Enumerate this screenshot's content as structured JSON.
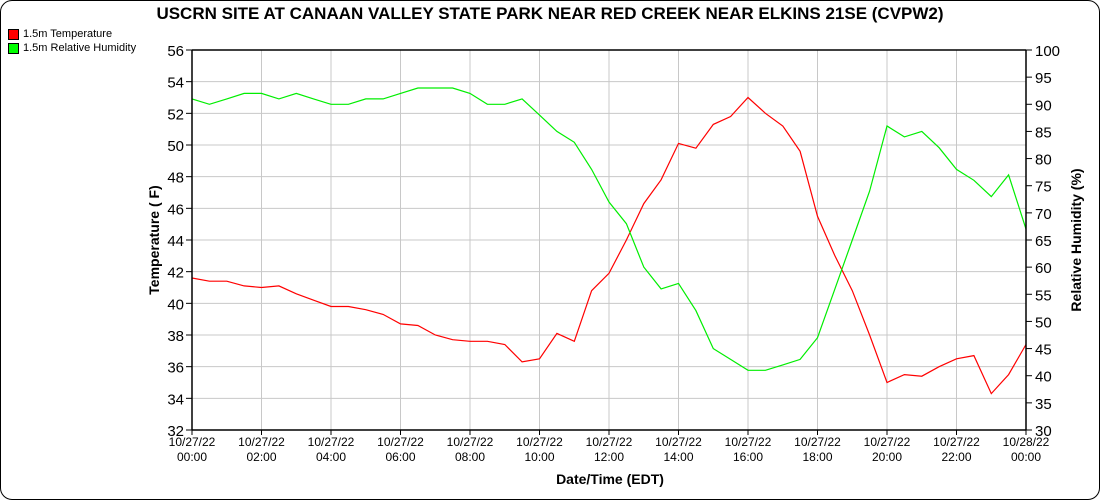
{
  "chart_data": {
    "type": "line",
    "title": "USCRN SITE AT CANAAN VALLEY STATE PARK NEAR RED CREEK NEAR ELKINS 21SE (CVPW2)",
    "xlabel": "Date/Time (EDT)",
    "ylabel_left": "Temperature ( F)",
    "ylabel_right": "Relative Humidity (%)",
    "xlim_hours": [
      0,
      24
    ],
    "ylim_left": [
      32,
      56
    ],
    "ylim_right": [
      30,
      100
    ],
    "grid": true,
    "legend_position": "top-left",
    "x_ticks": [
      {
        "date": "10/27/22",
        "time": "00:00"
      },
      {
        "date": "10/27/22",
        "time": "02:00"
      },
      {
        "date": "10/27/22",
        "time": "04:00"
      },
      {
        "date": "10/27/22",
        "time": "06:00"
      },
      {
        "date": "10/27/22",
        "time": "08:00"
      },
      {
        "date": "10/27/22",
        "time": "10:00"
      },
      {
        "date": "10/27/22",
        "time": "12:00"
      },
      {
        "date": "10/27/22",
        "time": "14:00"
      },
      {
        "date": "10/27/22",
        "time": "16:00"
      },
      {
        "date": "10/27/22",
        "time": "18:00"
      },
      {
        "date": "10/27/22",
        "time": "20:00"
      },
      {
        "date": "10/27/22",
        "time": "22:00"
      },
      {
        "date": "10/28/22",
        "time": "00:00"
      }
    ],
    "y_ticks_left": [
      "56",
      "54",
      "52",
      "50",
      "48",
      "46",
      "44",
      "42",
      "40",
      "38",
      "36",
      "34",
      "32"
    ],
    "y_ticks_right": [
      "100",
      "95",
      "90",
      "85",
      "80",
      "75",
      "70",
      "65",
      "60",
      "55",
      "50",
      "45",
      "40",
      "35",
      "30"
    ],
    "x_hours": [
      0,
      0.5,
      1,
      1.5,
      2,
      2.5,
      3,
      3.5,
      4,
      4.5,
      5,
      5.5,
      6,
      6.5,
      7,
      7.5,
      8,
      8.5,
      9,
      9.5,
      10,
      10.5,
      11,
      11.5,
      12,
      12.5,
      13,
      13.5,
      14,
      14.5,
      15,
      15.5,
      16,
      16.5,
      17,
      17.5,
      18,
      18.5,
      19,
      19.5,
      20,
      20.5,
      21,
      21.5,
      22,
      22.5,
      23,
      23.5,
      24
    ],
    "series": [
      {
        "name": "1.5m Temperature",
        "axis": "left",
        "color": "#ff0000",
        "values": [
          41.6,
          41.4,
          41.4,
          41.1,
          41.0,
          41.1,
          40.6,
          40.2,
          39.8,
          39.8,
          39.6,
          39.3,
          38.7,
          38.6,
          38.0,
          37.7,
          37.6,
          37.6,
          37.4,
          36.3,
          36.5,
          38.1,
          37.6,
          40.8,
          41.9,
          44.0,
          46.3,
          47.8,
          50.1,
          49.8,
          51.3,
          51.8,
          53.0,
          52.0,
          51.2,
          49.6,
          45.5,
          43.0,
          40.8,
          38.0,
          35.0,
          35.5,
          35.4,
          36.0,
          36.5,
          36.7,
          34.3,
          35.5,
          37.4
        ]
      },
      {
        "name": "1.5m Relative Humidity",
        "axis": "right",
        "color": "#00ee00",
        "values": [
          91,
          90,
          91,
          92,
          92,
          91,
          92,
          91,
          90,
          90,
          91,
          91,
          92,
          93,
          93,
          93,
          92,
          90,
          90,
          91,
          88,
          85,
          83,
          78,
          72,
          68,
          60,
          56,
          57,
          52,
          45,
          43,
          41,
          41,
          42,
          43,
          47,
          56,
          65,
          74,
          86,
          84,
          85,
          82,
          78,
          76,
          73,
          77,
          67
        ]
      }
    ]
  }
}
